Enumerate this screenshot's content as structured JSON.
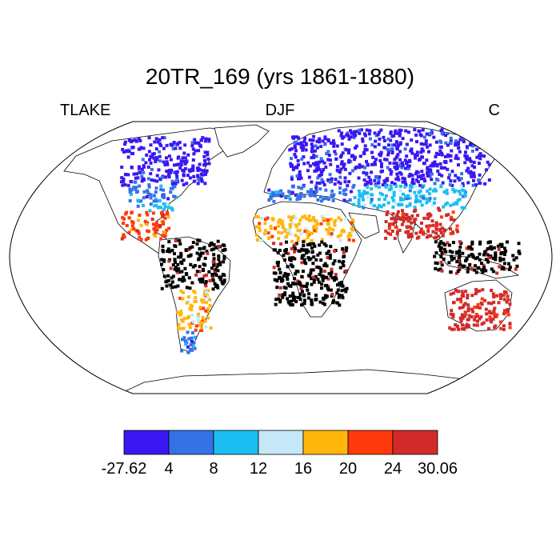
{
  "title": "20TR_169 (yrs 1861-1880)",
  "subtitle_left": "TLAKE",
  "subtitle_center": "DJF",
  "subtitle_right": "C",
  "map": {
    "projection": "Robinson",
    "field": "lake temperature (DJF mean)",
    "colors_by_region": [
      {
        "region": "Canada / northern USA",
        "bin": 0
      },
      {
        "region": "Central USA",
        "bin": 1
      },
      {
        "region": "Southern USA",
        "bin": 2
      },
      {
        "region": "Mexico / Central America",
        "bin": 5
      },
      {
        "region": "Amazon basin",
        "bin": 7
      },
      {
        "region": "Southern South America",
        "bin": 4
      },
      {
        "region": "Patagonia",
        "bin": 1
      },
      {
        "region": "Northern Europe",
        "bin": 0
      },
      {
        "region": "Mediterranean",
        "bin": 1
      },
      {
        "region": "Siberia / Russia",
        "bin": 0
      },
      {
        "region": "Central Asia",
        "bin": 2
      },
      {
        "region": "Sahel",
        "bin": 4
      },
      {
        "region": "Central Africa",
        "bin": 7
      },
      {
        "region": "India",
        "bin": 6
      },
      {
        "region": "Southeast Asia",
        "bin": 7
      },
      {
        "region": "Australia",
        "bin": 6
      }
    ]
  },
  "colorbar": {
    "colors": [
      "#3b17f2",
      "#3472e6",
      "#1cbef2",
      "#c6e7f6",
      "#ffb70d",
      "#ff3a0c",
      "#d22a2a"
    ],
    "labels": [
      "-27.62",
      "4",
      "8",
      "12",
      "16",
      "20",
      "24",
      "30.06"
    ]
  }
}
